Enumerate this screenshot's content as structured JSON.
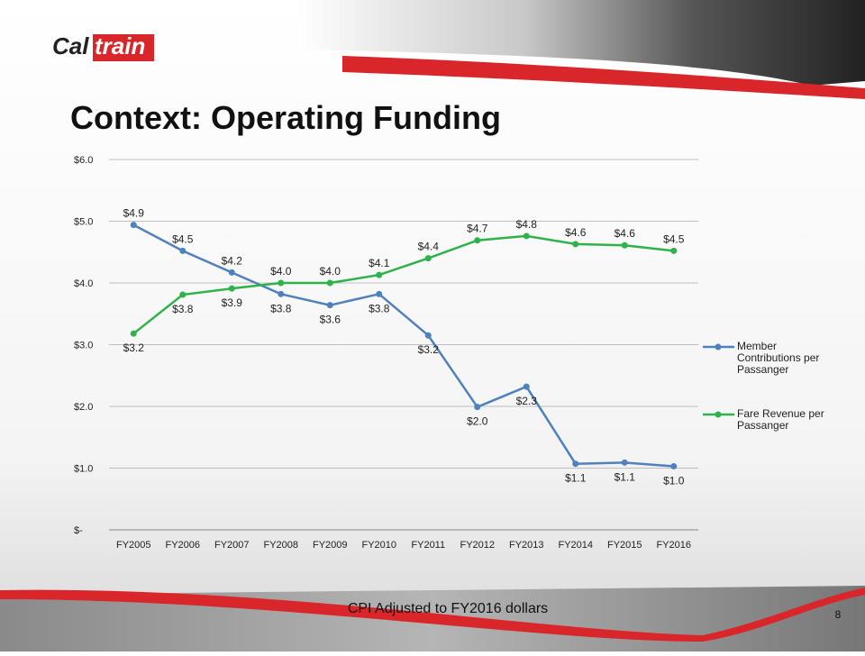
{
  "logo": [
    "Cal",
    "train"
  ],
  "footer": "CPI Adjusted to FY2016 dollars",
  "page_number": "8",
  "chart_data": {
    "type": "line",
    "title": "Context: Operating Funding",
    "categories": [
      "FY2005",
      "FY2006",
      "FY2007",
      "FY2008",
      "FY2009",
      "FY2010",
      "FY2011",
      "FY2012",
      "FY2013",
      "FY2014",
      "FY2015",
      "FY2016"
    ],
    "series": [
      {
        "name": "Member Contributions per Passanger",
        "color": "#4f81bd",
        "values": [
          4.94,
          4.52,
          4.17,
          3.82,
          3.64,
          3.82,
          3.15,
          1.99,
          2.32,
          1.07,
          1.09,
          1.03
        ],
        "value_labels": [
          "$4.9",
          "$4.5",
          "$4.2",
          "$3.8",
          "$3.6",
          "$3.8",
          "$3.2",
          "$2.0",
          "$2.3",
          "$1.1",
          "$1.1",
          "$1.0"
        ]
      },
      {
        "name": "Fare Revenue per Passanger",
        "color": "#2db34a",
        "values": [
          3.18,
          3.81,
          3.91,
          4.0,
          4.0,
          4.13,
          4.4,
          4.69,
          4.76,
          4.63,
          4.61,
          4.52
        ],
        "value_labels": [
          "$3.2",
          "$3.8",
          "$3.9",
          "$4.0",
          "$4.0",
          "$4.1",
          "$4.4",
          "$4.7",
          "$4.8",
          "$4.6",
          "$4.6",
          "$4.5"
        ]
      }
    ],
    "ylim": [
      0,
      6
    ],
    "yticks": [
      {
        "value": 0,
        "label": "$-"
      },
      {
        "value": 1,
        "label": "$1.0"
      },
      {
        "value": 2,
        "label": "$2.0"
      },
      {
        "value": 3,
        "label": "$3.0"
      },
      {
        "value": 4,
        "label": "$4.0"
      },
      {
        "value": 5,
        "label": "$5.0"
      },
      {
        "value": 6,
        "label": "$6.0"
      }
    ],
    "grid": true,
    "legend": "right"
  }
}
